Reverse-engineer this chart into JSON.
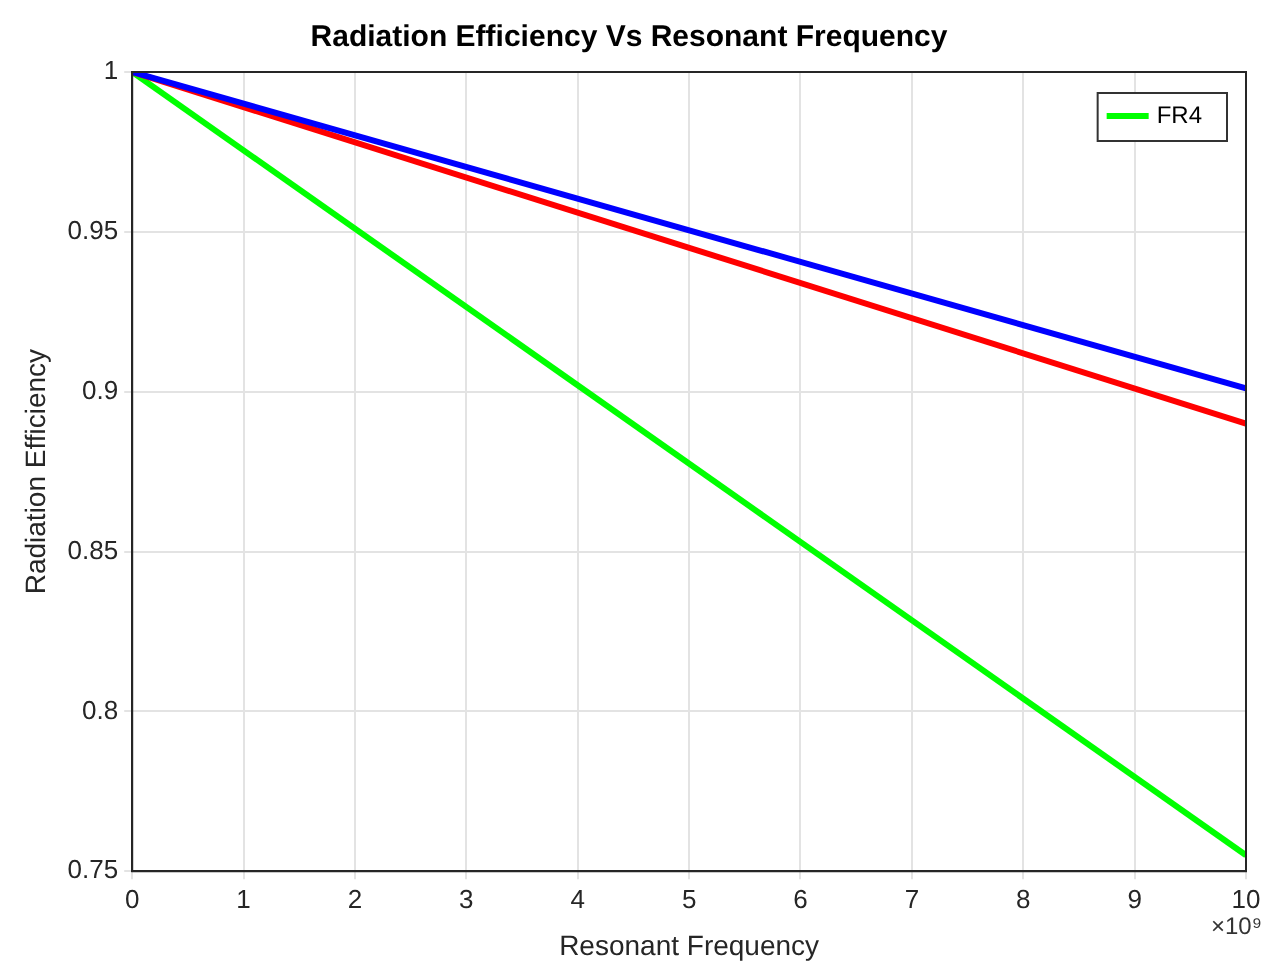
{
  "chart_data": {
    "type": "line",
    "title": "Radiation Efficiency Vs Resonant Frequency",
    "xlabel": "Resonant Frequency",
    "ylabel": "Radiation Efficiency",
    "annotations": [
      "×10⁹"
    ],
    "x": [
      0,
      10
    ],
    "series": [
      {
        "color": "#0000ff",
        "values": [
          1,
          0.901
        ]
      },
      {
        "color": "#ff0000",
        "values": [
          1,
          0.89
        ]
      },
      {
        "name": "FR4",
        "color": "#00ff00",
        "values": [
          1,
          0.755
        ]
      }
    ],
    "xlim": [
      0,
      10
    ],
    "xticks": [
      0,
      1,
      2,
      3,
      4,
      5,
      6,
      7,
      8,
      9,
      10
    ],
    "ylim": [
      0.75,
      1
    ],
    "yticks": [
      0.75,
      0.8,
      0.85,
      0.9,
      0.95,
      1
    ],
    "grid": true,
    "legend": "top right",
    "marker": "none",
    "line_style": "solid"
  }
}
